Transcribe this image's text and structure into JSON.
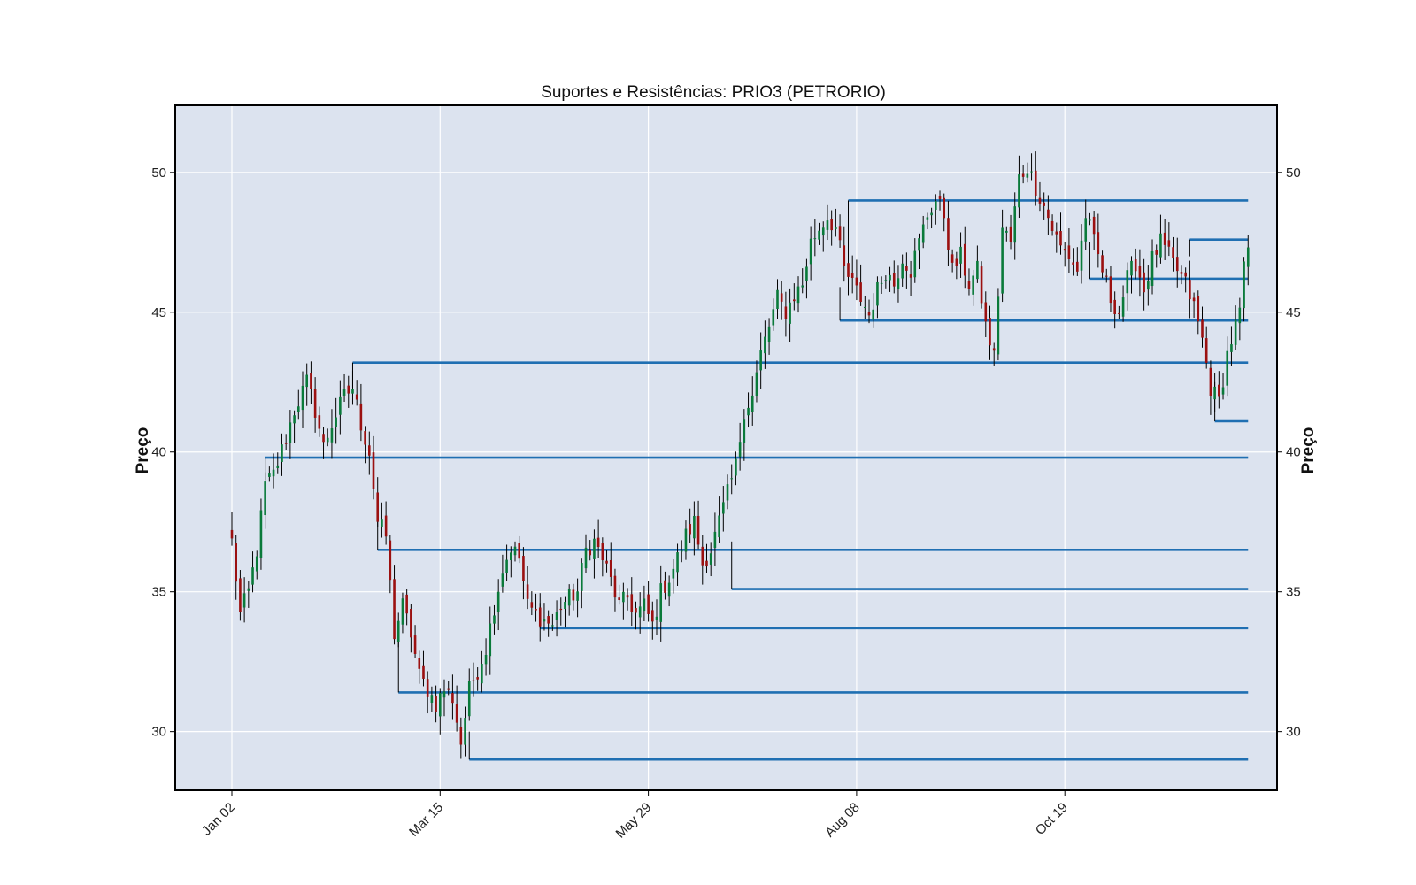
{
  "chart_data": {
    "type": "candlestick",
    "title": "Suportes e Resistências: PRIO3 (PETRORIO)",
    "ylabel_left": "Preço",
    "ylabel_right": "Preço",
    "ylim": [
      27.9,
      52.4
    ],
    "y_ticks": [
      30,
      35,
      40,
      45,
      50
    ],
    "x_tick_labels": [
      "Jan 02",
      "Mar 15",
      "May 29",
      "Aug 08",
      "Oct 19"
    ],
    "x_tick_indices": [
      0,
      50,
      100,
      150,
      200
    ],
    "grid": true,
    "colors": {
      "background": "#dce3ef",
      "up": "#0a7a3a",
      "down": "#9b1010",
      "wick": "#000000",
      "level_line": "#1f6fb2",
      "connector": "#000000"
    },
    "anchors": [
      [
        0,
        36.8
      ],
      [
        2,
        34.2
      ],
      [
        4,
        35.0
      ],
      [
        6,
        36.5
      ],
      [
        8,
        38.8
      ],
      [
        10,
        39.2
      ],
      [
        13,
        40.5
      ],
      [
        15,
        41.5
      ],
      [
        18,
        42.5
      ],
      [
        20,
        41.5
      ],
      [
        22,
        40.2
      ],
      [
        24,
        41.0
      ],
      [
        27,
        42.0
      ],
      [
        29,
        42.3
      ],
      [
        31,
        41.0
      ],
      [
        33,
        40.0
      ],
      [
        35,
        37.5
      ],
      [
        37,
        37.0
      ],
      [
        39,
        33.5
      ],
      [
        41,
        34.5
      ],
      [
        43,
        33.5
      ],
      [
        45,
        32.0
      ],
      [
        47,
        31.5
      ],
      [
        49,
        31.0
      ],
      [
        51,
        31.5
      ],
      [
        53,
        31.2
      ],
      [
        55,
        29.6
      ],
      [
        57,
        31.5
      ],
      [
        59,
        32.2
      ],
      [
        61,
        33.0
      ],
      [
        63,
        34.5
      ],
      [
        65,
        35.8
      ],
      [
        67,
        36.6
      ],
      [
        69,
        36.2
      ],
      [
        71,
        34.5
      ],
      [
        73,
        34.2
      ],
      [
        75,
        34.0
      ],
      [
        77,
        33.8
      ],
      [
        79,
        34.5
      ],
      [
        81,
        34.8
      ],
      [
        83,
        35.0
      ],
      [
        85,
        36.5
      ],
      [
        87,
        36.8
      ],
      [
        89,
        36.2
      ],
      [
        91,
        35.4
      ],
      [
        93,
        34.5
      ],
      [
        95,
        34.8
      ],
      [
        97,
        34.2
      ],
      [
        99,
        34.5
      ],
      [
        101,
        33.8
      ],
      [
        103,
        35.0
      ],
      [
        105,
        35.5
      ],
      [
        107,
        36.2
      ],
      [
        109,
        37.0
      ],
      [
        111,
        37.5
      ],
      [
        113,
        36.0
      ],
      [
        115,
        36.5
      ],
      [
        117,
        37.5
      ],
      [
        119,
        38.5
      ],
      [
        121,
        39.5
      ],
      [
        123,
        41.5
      ],
      [
        125,
        42.0
      ],
      [
        127,
        43.5
      ],
      [
        129,
        44.5
      ],
      [
        131,
        45.5
      ],
      [
        133,
        45.0
      ],
      [
        135,
        45.6
      ],
      [
        137,
        46.0
      ],
      [
        139,
        47.5
      ],
      [
        141,
        48.0
      ],
      [
        143,
        48.4
      ],
      [
        145,
        48.0
      ],
      [
        147,
        46.5
      ],
      [
        149,
        46.0
      ],
      [
        151,
        45.5
      ],
      [
        153,
        44.9
      ],
      [
        155,
        45.8
      ],
      [
        157,
        46.5
      ],
      [
        159,
        46.0
      ],
      [
        161,
        47.0
      ],
      [
        163,
        46.5
      ],
      [
        165,
        47.5
      ],
      [
        167,
        48.5
      ],
      [
        169,
        49.0
      ],
      [
        171,
        48.5
      ],
      [
        173,
        46.5
      ],
      [
        175,
        47.0
      ],
      [
        177,
        46.0
      ],
      [
        179,
        46.5
      ],
      [
        181,
        44.5
      ],
      [
        183,
        43.4
      ],
      [
        185,
        48.0
      ],
      [
        187,
        47.5
      ],
      [
        189,
        49.8
      ],
      [
        191,
        50.2
      ],
      [
        193,
        49.5
      ],
      [
        195,
        48.8
      ],
      [
        197,
        48.0
      ],
      [
        199,
        47.3
      ],
      [
        201,
        47.0
      ],
      [
        203,
        46.5
      ],
      [
        205,
        48.5
      ],
      [
        207,
        47.5
      ],
      [
        209,
        46.5
      ],
      [
        211,
        45.5
      ],
      [
        213,
        45.0
      ],
      [
        215,
        46.2
      ],
      [
        217,
        46.8
      ],
      [
        219,
        45.8
      ],
      [
        221,
        46.9
      ],
      [
        223,
        47.5
      ],
      [
        225,
        47.0
      ],
      [
        227,
        46.5
      ],
      [
        229,
        46.0
      ],
      [
        231,
        45.2
      ],
      [
        233,
        44.0
      ],
      [
        235,
        42.3
      ],
      [
        237,
        41.8
      ],
      [
        239,
        43.5
      ],
      [
        241,
        44.5
      ],
      [
        242,
        45.0
      ],
      [
        243,
        46.5
      ],
      [
        244,
        47.3
      ]
    ],
    "levels": [
      {
        "price": 49.0,
        "start": 148,
        "conn_from": 45.9
      },
      {
        "price": 47.6,
        "start": 230,
        "conn_from": 47.0
      },
      {
        "price": 46.2,
        "start": 206,
        "conn_from": 47.5
      },
      {
        "price": 44.7,
        "start": 146,
        "conn_from": 45.9
      },
      {
        "price": 43.2,
        "start": 29,
        "conn_from": 42.3
      },
      {
        "price": 41.1,
        "start": 236,
        "conn_from": 42.5
      },
      {
        "price": 39.8,
        "start": 8,
        "conn_from": 39.0
      },
      {
        "price": 36.5,
        "start": 35,
        "conn_from": 37.8
      },
      {
        "price": 35.1,
        "start": 120,
        "conn_from": 36.8
      },
      {
        "price": 33.7,
        "start": 74,
        "conn_from": 34.6
      },
      {
        "price": 31.4,
        "start": 40,
        "conn_from": 33.3
      },
      {
        "price": 29.0,
        "start": 57,
        "conn_from": 30.0
      }
    ],
    "n_candles": 245
  }
}
